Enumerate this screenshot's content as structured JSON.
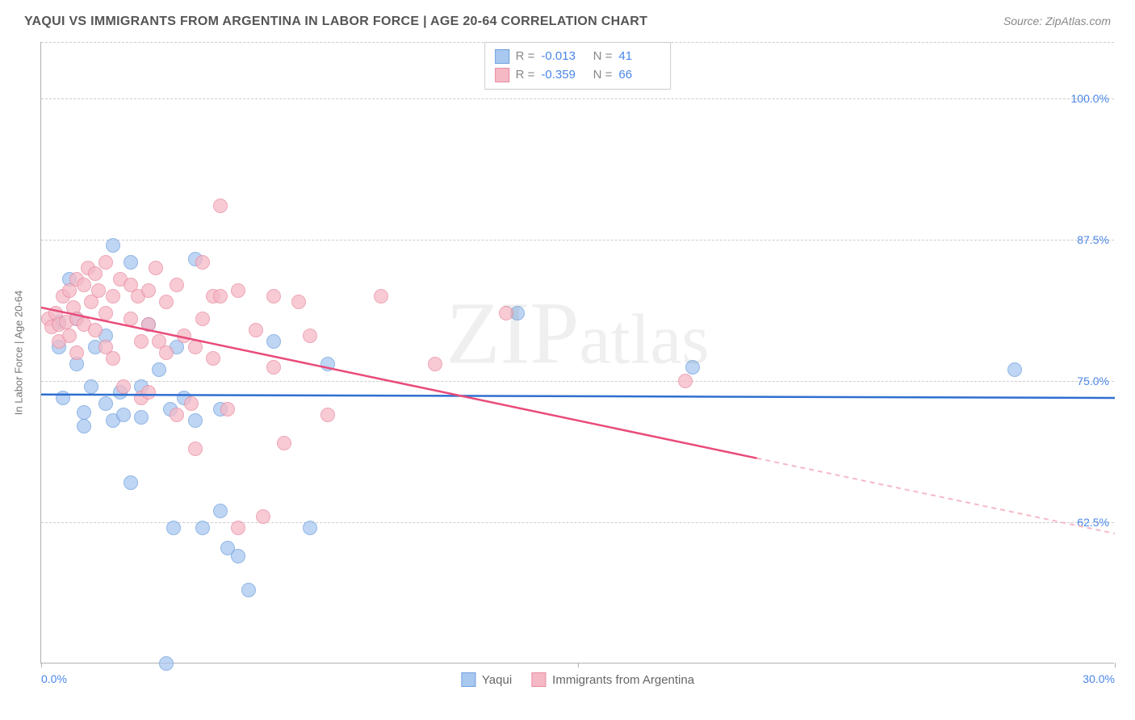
{
  "title": "YAQUI VS IMMIGRANTS FROM ARGENTINA IN LABOR FORCE | AGE 20-64 CORRELATION CHART",
  "source": "Source: ZipAtlas.com",
  "watermark": "ZIPatlas",
  "chart": {
    "type": "scatter",
    "y_axis_title": "In Labor Force | Age 20-64",
    "xlim": [
      0,
      30
    ],
    "ylim": [
      50,
      105
    ],
    "x_ticks": [
      0,
      15,
      30
    ],
    "x_tick_labels": [
      "0.0%",
      "",
      "30.0%"
    ],
    "y_gridlines": [
      62.5,
      75.0,
      87.5,
      100.0,
      105.0
    ],
    "y_tick_labels": [
      "62.5%",
      "75.0%",
      "87.5%",
      "100.0%",
      ""
    ],
    "background_color": "#ffffff",
    "grid_color": "#cccccc",
    "axis_color": "#b0b0b0",
    "tick_label_color": "#4a86e8",
    "series": [
      {
        "name": "Yaqui",
        "fill": "#a9c8f0",
        "stroke": "#6ea0de",
        "line_color": "#2f6fd0",
        "R": "-0.013",
        "N": "41",
        "trend": {
          "x1": 0,
          "y1": 73.8,
          "x2": 30,
          "y2": 73.5,
          "dashed_from_x": null
        },
        "points": [
          [
            0.5,
            80.2
          ],
          [
            0.5,
            78.0
          ],
          [
            0.6,
            73.5
          ],
          [
            0.8,
            84.0
          ],
          [
            1.0,
            80.5
          ],
          [
            1.0,
            76.5
          ],
          [
            1.2,
            72.2
          ],
          [
            1.2,
            71.0
          ],
          [
            1.4,
            74.5
          ],
          [
            1.5,
            78.0
          ],
          [
            1.8,
            79.0
          ],
          [
            1.8,
            73.0
          ],
          [
            2.0,
            87.0
          ],
          [
            2.0,
            71.5
          ],
          [
            2.2,
            74.0
          ],
          [
            2.3,
            72.0
          ],
          [
            2.5,
            85.5
          ],
          [
            2.5,
            66.0
          ],
          [
            2.8,
            74.5
          ],
          [
            2.8,
            71.8
          ],
          [
            3.0,
            80.0
          ],
          [
            3.3,
            76.0
          ],
          [
            3.5,
            50.0
          ],
          [
            3.6,
            72.5
          ],
          [
            3.7,
            62.0
          ],
          [
            3.8,
            78.0
          ],
          [
            4.0,
            73.5
          ],
          [
            4.3,
            85.8
          ],
          [
            4.3,
            71.5
          ],
          [
            4.5,
            62.0
          ],
          [
            5.0,
            72.5
          ],
          [
            5.0,
            63.5
          ],
          [
            5.2,
            60.2
          ],
          [
            5.5,
            59.5
          ],
          [
            5.8,
            56.5
          ],
          [
            6.5,
            78.5
          ],
          [
            7.5,
            62.0
          ],
          [
            8.0,
            76.5
          ],
          [
            13.3,
            81.0
          ],
          [
            18.2,
            76.2
          ],
          [
            27.2,
            76.0
          ]
        ]
      },
      {
        "name": "Immigrants from Argentina",
        "fill": "#f5b9c6",
        "stroke": "#e98aa0",
        "line_color": "#e94b7a",
        "R": "-0.359",
        "N": "66",
        "trend": {
          "x1": 0,
          "y1": 81.5,
          "x2": 30,
          "y2": 61.5,
          "dashed_from_x": 20
        },
        "points": [
          [
            0.2,
            80.5
          ],
          [
            0.3,
            79.8
          ],
          [
            0.4,
            81.0
          ],
          [
            0.5,
            80.0
          ],
          [
            0.5,
            78.5
          ],
          [
            0.6,
            82.5
          ],
          [
            0.7,
            80.2
          ],
          [
            0.8,
            83.0
          ],
          [
            0.8,
            79.0
          ],
          [
            0.9,
            81.5
          ],
          [
            1.0,
            84.0
          ],
          [
            1.0,
            80.5
          ],
          [
            1.0,
            77.5
          ],
          [
            1.2,
            83.5
          ],
          [
            1.2,
            80.0
          ],
          [
            1.3,
            85.0
          ],
          [
            1.4,
            82.0
          ],
          [
            1.5,
            84.5
          ],
          [
            1.5,
            79.5
          ],
          [
            1.6,
            83.0
          ],
          [
            1.8,
            85.5
          ],
          [
            1.8,
            81.0
          ],
          [
            1.8,
            78.0
          ],
          [
            2.0,
            82.5
          ],
          [
            2.0,
            77.0
          ],
          [
            2.2,
            84.0
          ],
          [
            2.3,
            74.5
          ],
          [
            2.5,
            83.5
          ],
          [
            2.5,
            80.5
          ],
          [
            2.7,
            82.5
          ],
          [
            2.8,
            78.5
          ],
          [
            2.8,
            73.5
          ],
          [
            3.0,
            83.0
          ],
          [
            3.0,
            80.0
          ],
          [
            3.0,
            74.0
          ],
          [
            3.2,
            85.0
          ],
          [
            3.3,
            78.5
          ],
          [
            3.5,
            82.0
          ],
          [
            3.5,
            77.5
          ],
          [
            3.8,
            83.5
          ],
          [
            3.8,
            72.0
          ],
          [
            4.0,
            79.0
          ],
          [
            4.2,
            73.0
          ],
          [
            4.3,
            78.0
          ],
          [
            4.3,
            69.0
          ],
          [
            4.5,
            85.5
          ],
          [
            4.5,
            80.5
          ],
          [
            4.8,
            82.5
          ],
          [
            4.8,
            77.0
          ],
          [
            5.0,
            90.5
          ],
          [
            5.0,
            82.5
          ],
          [
            5.2,
            72.5
          ],
          [
            5.5,
            62.0
          ],
          [
            5.5,
            83.0
          ],
          [
            6.0,
            79.5
          ],
          [
            6.2,
            63.0
          ],
          [
            6.5,
            82.5
          ],
          [
            6.5,
            76.2
          ],
          [
            6.8,
            69.5
          ],
          [
            7.2,
            82.0
          ],
          [
            7.5,
            79.0
          ],
          [
            8.0,
            72.0
          ],
          [
            9.5,
            82.5
          ],
          [
            11.0,
            76.5
          ],
          [
            13.0,
            81.0
          ],
          [
            18.0,
            75.0
          ]
        ]
      }
    ]
  }
}
